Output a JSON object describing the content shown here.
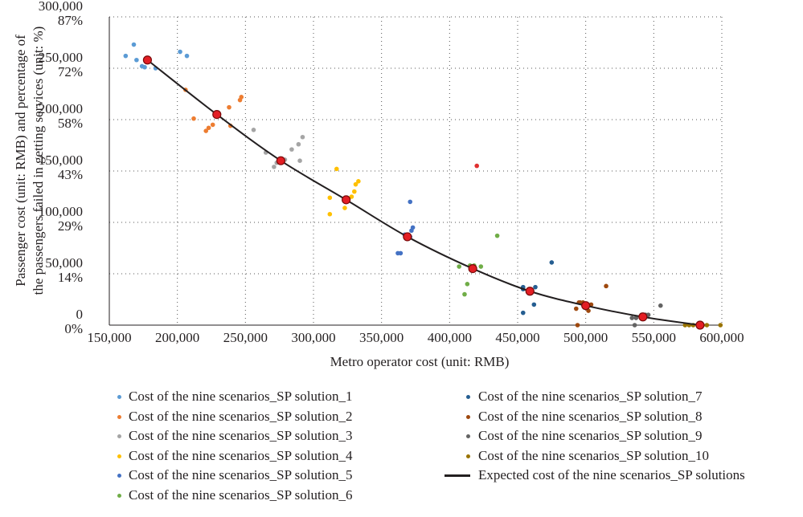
{
  "chart_data": {
    "type": "scatter",
    "title": "",
    "xlabel": "Metro operator cost (unit: RMB)",
    "ylabel_line1": "Passenger cost (unit: RMB) and percentage of",
    "ylabel_line2": "the passengers failed in getting services (unit: %)",
    "xlim": [
      150000,
      600000
    ],
    "ylim": [
      0,
      300000
    ],
    "x_ticks": [
      "150,000",
      "200,000",
      "250,000",
      "300,000",
      "350,000",
      "400,000",
      "450,000",
      "500,000",
      "550,000",
      "600,000"
    ],
    "x_tick_values": [
      150000,
      200000,
      250000,
      300000,
      350000,
      400000,
      450000,
      500000,
      550000,
      600000
    ],
    "y_ticks_cost": [
      "0",
      "50,000",
      "100,000",
      "150,000",
      "200,000",
      "250,000",
      "300,000"
    ],
    "y_ticks_cost_values": [
      0,
      50000,
      100000,
      150000,
      200000,
      250000,
      300000
    ],
    "y_ticks_pct": [
      "0%",
      "14%",
      "29%",
      "43%",
      "58%",
      "72%",
      "87%"
    ],
    "grid": "dotted",
    "legend_position": "bottom",
    "series": [
      {
        "name": "Cost of the nine scenarios_SP solution_1",
        "color": "#5b9bd5",
        "points": [
          [
            162000,
            262000
          ],
          [
            170000,
            258000
          ],
          [
            168000,
            273000
          ],
          [
            174000,
            252000
          ],
          [
            176000,
            251000
          ],
          [
            184000,
            250000
          ],
          [
            202000,
            266000
          ],
          [
            207000,
            262000
          ]
        ]
      },
      {
        "name": "Cost of the nine scenarios_SP solution_2",
        "color": "#ed7d31",
        "points": [
          [
            206000,
            229000
          ],
          [
            212000,
            201000
          ],
          [
            221000,
            189000
          ],
          [
            223000,
            192000
          ],
          [
            226000,
            195000
          ],
          [
            238000,
            212000
          ],
          [
            239000,
            194000
          ],
          [
            246000,
            219000
          ],
          [
            247000,
            222000
          ]
        ]
      },
      {
        "name": "Cost of the nine scenarios_SP solution_3",
        "color": "#a5a5a5",
        "points": [
          [
            256000,
            190000
          ],
          [
            265000,
            168000
          ],
          [
            271000,
            154000
          ],
          [
            273000,
            158000
          ],
          [
            279000,
            161000
          ],
          [
            284000,
            171000
          ],
          [
            289000,
            176000
          ],
          [
            292000,
            183000
          ],
          [
            290000,
            160000
          ]
        ]
      },
      {
        "name": "Cost of the nine scenarios_SP solution_4",
        "color": "#ffc000",
        "points": [
          [
            312000,
            108000
          ],
          [
            312000,
            124000
          ],
          [
            317000,
            152000
          ],
          [
            323000,
            114000
          ],
          [
            328000,
            125000
          ],
          [
            330000,
            130000
          ],
          [
            331000,
            137000
          ],
          [
            333000,
            140000
          ]
        ]
      },
      {
        "name": "Cost of the nine scenarios_SP solution_5",
        "color": "#4472c4",
        "points": [
          [
            362000,
            70000
          ],
          [
            364000,
            70000
          ],
          [
            367000,
            88000
          ],
          [
            371000,
            86000
          ],
          [
            372000,
            92000
          ],
          [
            373000,
            95000
          ],
          [
            371000,
            120000
          ]
        ]
      },
      {
        "name": "Cost of the nine scenarios_SP solution_6",
        "color": "#70ad47",
        "points": [
          [
            407000,
            57000
          ],
          [
            411000,
            30000
          ],
          [
            413000,
            40000
          ],
          [
            415000,
            58000
          ],
          [
            418000,
            58000
          ],
          [
            423000,
            57000
          ],
          [
            435000,
            87000
          ]
        ]
      },
      {
        "name": "Cost of the nine scenarios_SP solution_7",
        "color": "#255e91",
        "points": [
          [
            454000,
            35000
          ],
          [
            454000,
            37000
          ],
          [
            454000,
            12000
          ],
          [
            462000,
            20000
          ],
          [
            463000,
            37000
          ],
          [
            475000,
            61000
          ]
        ]
      },
      {
        "name": "Cost of the nine scenarios_SP solution_8",
        "color": "#9e480e",
        "points": [
          [
            493000,
            16000
          ],
          [
            495000,
            22000
          ],
          [
            496000,
            22000
          ],
          [
            498000,
            22000
          ],
          [
            500000,
            18000
          ],
          [
            502000,
            14000
          ],
          [
            504000,
            20000
          ],
          [
            515000,
            38000
          ],
          [
            494000,
            0
          ]
        ]
      },
      {
        "name": "Cost of the nine scenarios_SP solution_9",
        "color": "#636363",
        "points": [
          [
            534000,
            7000
          ],
          [
            537000,
            7000
          ],
          [
            541000,
            10000
          ],
          [
            544000,
            10000
          ],
          [
            546000,
            10000
          ],
          [
            555000,
            19000
          ],
          [
            536000,
            0
          ]
        ]
      },
      {
        "name": "Cost of the nine scenarios_SP solution_10",
        "color": "#997300",
        "points": [
          [
            573000,
            0
          ],
          [
            576000,
            0
          ],
          [
            579000,
            0
          ],
          [
            583000,
            0
          ],
          [
            586000,
            0
          ],
          [
            589000,
            0
          ],
          [
            599000,
            0
          ]
        ]
      }
    ],
    "outlier": {
      "color": "#e03030",
      "point": [
        420000,
        155000
      ]
    },
    "expected": {
      "name": "Expected cost of the nine scenarios_SP solutions",
      "line_color": "#231f20",
      "marker_color": "#e31e24",
      "points": [
        [
          178000,
          258000
        ],
        [
          229000,
          205000
        ],
        [
          276000,
          160000
        ],
        [
          324000,
          122000
        ],
        [
          369000,
          86000
        ],
        [
          417000,
          55000
        ],
        [
          459000,
          33000
        ],
        [
          500000,
          19000
        ],
        [
          542000,
          8000
        ],
        [
          584000,
          0
        ]
      ]
    }
  }
}
